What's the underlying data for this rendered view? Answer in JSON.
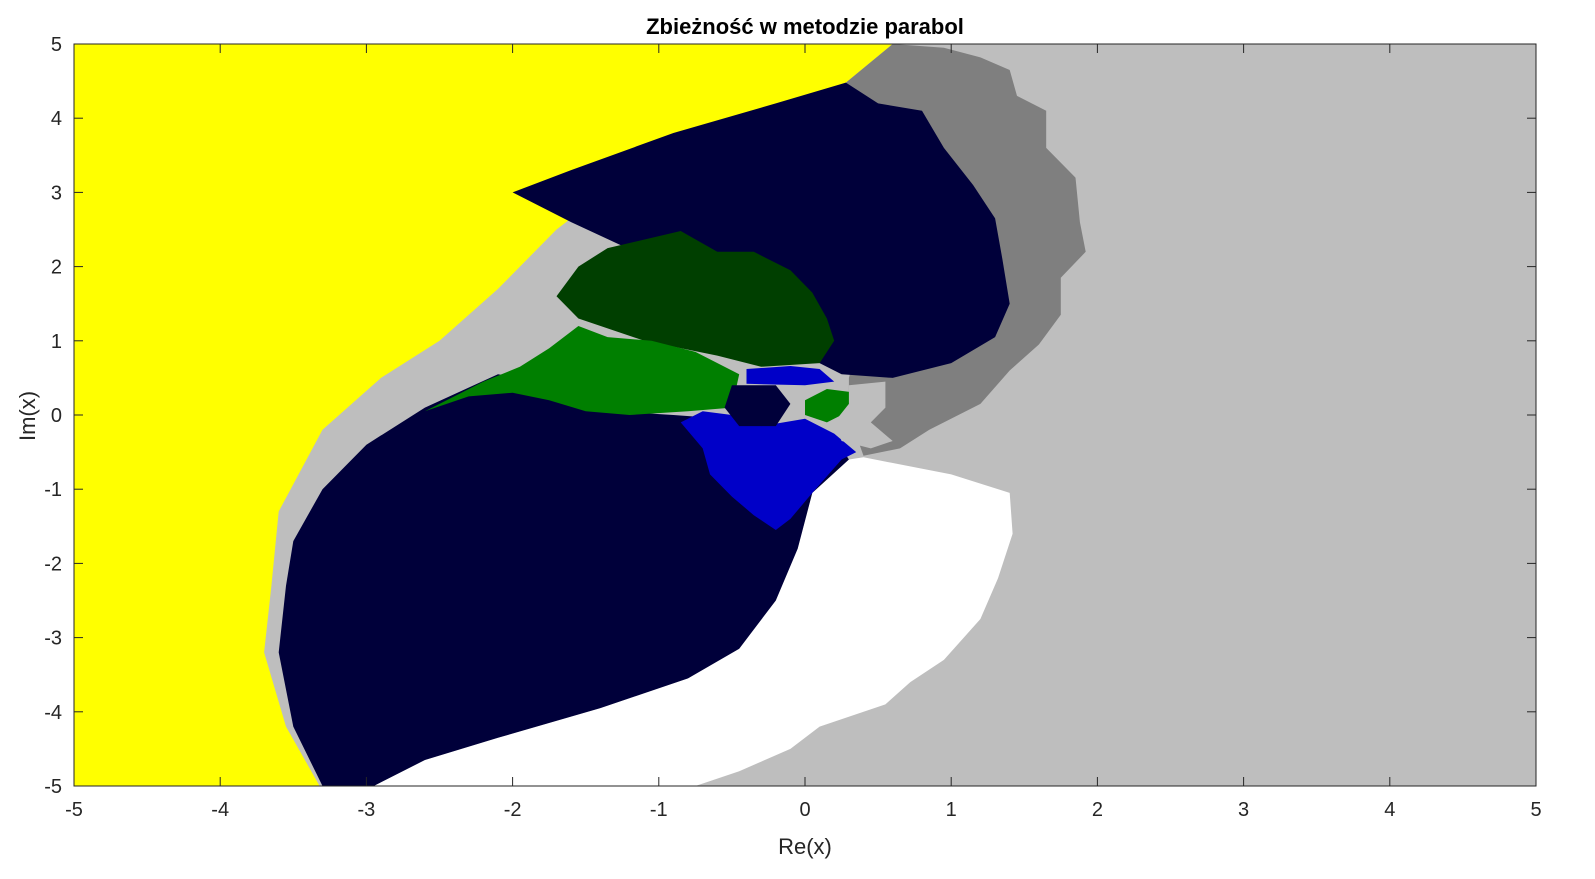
{
  "chart_data": {
    "type": "heatmap",
    "title": "Zbieżność w metodzie parabol",
    "xlabel": "Re(x)",
    "ylabel": "Im(x)",
    "xlim": [
      -5,
      5
    ],
    "ylim": [
      -5,
      5
    ],
    "xticks": [
      "-5",
      "-4",
      "-3",
      "-2",
      "-1",
      "0",
      "1",
      "2",
      "3",
      "4",
      "5"
    ],
    "yticks": [
      "5",
      "4",
      "3",
      "2",
      "1",
      "0",
      "-1",
      "-2",
      "-3",
      "-4",
      "-5"
    ],
    "grid": false,
    "legend": "none",
    "colors": {
      "background": "#bebebe",
      "yellow": "#ffff00",
      "navy": "#00003a",
      "dark_green": "#003f00",
      "green": "#007f00",
      "blue": "#0000c8",
      "gray": "#7f7f7f",
      "white": "#ffffff",
      "light_gray": "#bebebe"
    },
    "regions": [
      {
        "name": "basin-yellow",
        "color": "#ffff00",
        "polygon": [
          [
            -5,
            5
          ],
          [
            0.6,
            5
          ],
          [
            0.28,
            4.48
          ],
          [
            0.1,
            4.36
          ],
          [
            -0.7,
            3.8
          ],
          [
            -1.3,
            3.1
          ],
          [
            -1.7,
            2.5
          ],
          [
            -2.1,
            1.7
          ],
          [
            -2.5,
            1.0
          ],
          [
            -2.9,
            0.5
          ],
          [
            -3.3,
            -0.2
          ],
          [
            -3.6,
            -1.3
          ],
          [
            -3.65,
            -2.3
          ],
          [
            -3.7,
            -3.2
          ],
          [
            -3.55,
            -4.2
          ],
          [
            -3.32,
            -5
          ],
          [
            -5,
            -5
          ]
        ]
      },
      {
        "name": "basin-gray",
        "color": "#7f7f7f",
        "polygon": [
          [
            0.6,
            5
          ],
          [
            0.95,
            4.95
          ],
          [
            1.2,
            4.82
          ],
          [
            1.4,
            4.65
          ],
          [
            1.45,
            4.3
          ],
          [
            1.65,
            4.1
          ],
          [
            1.65,
            3.6
          ],
          [
            1.85,
            3.2
          ],
          [
            1.88,
            2.6
          ],
          [
            1.92,
            2.2
          ],
          [
            1.75,
            1.85
          ],
          [
            1.75,
            1.35
          ],
          [
            1.6,
            0.95
          ],
          [
            1.4,
            0.6
          ],
          [
            1.2,
            0.15
          ],
          [
            0.85,
            -0.2
          ],
          [
            0.65,
            -0.45
          ],
          [
            0.4,
            -0.55
          ],
          [
            0.3,
            0
          ],
          [
            0.3,
            0.5
          ],
          [
            0.4,
            1.2
          ],
          [
            0.6,
            2.2
          ],
          [
            0.6,
            3.2
          ],
          [
            0.4,
            4.2
          ],
          [
            0.28,
            4.48
          ]
        ]
      },
      {
        "name": "basin-white",
        "color": "#ffffff",
        "polygon": [
          [
            0.4,
            -0.57
          ],
          [
            1.0,
            -0.8
          ],
          [
            1.4,
            -1.05
          ],
          [
            1.42,
            -1.6
          ],
          [
            1.32,
            -2.2
          ],
          [
            1.2,
            -2.75
          ],
          [
            0.95,
            -3.3
          ],
          [
            0.72,
            -3.6
          ],
          [
            0.55,
            -3.9
          ],
          [
            0.1,
            -4.2
          ],
          [
            -0.1,
            -4.5
          ],
          [
            -0.45,
            -4.8
          ],
          [
            -0.75,
            -5
          ],
          [
            -2.95,
            -5
          ],
          [
            -2.6,
            -4.65
          ],
          [
            -2.1,
            -4.35
          ],
          [
            -1.4,
            -3.95
          ],
          [
            -0.8,
            -3.55
          ],
          [
            -0.45,
            -3.15
          ],
          [
            -0.2,
            -2.5
          ],
          [
            -0.05,
            -1.8
          ],
          [
            0.05,
            -1.05
          ],
          [
            0.3,
            -0.6
          ]
        ]
      },
      {
        "name": "basin-navy-upper",
        "color": "#00003a",
        "polygon": [
          [
            0.28,
            4.48
          ],
          [
            0.5,
            4.2
          ],
          [
            0.8,
            4.1
          ],
          [
            0.95,
            3.6
          ],
          [
            1.15,
            3.1
          ],
          [
            1.3,
            2.65
          ],
          [
            1.35,
            2.1
          ],
          [
            1.4,
            1.5
          ],
          [
            1.3,
            1.05
          ],
          [
            1.0,
            0.7
          ],
          [
            0.6,
            0.5
          ],
          [
            0.25,
            0.55
          ],
          [
            0.1,
            0.7
          ],
          [
            -0.2,
            1.0
          ],
          [
            -1.0,
            2.05
          ],
          [
            -1.6,
            2.6
          ],
          [
            -2.0,
            3.0
          ],
          [
            -1.6,
            3.3
          ],
          [
            -0.9,
            3.8
          ],
          [
            -0.2,
            4.2
          ]
        ]
      },
      {
        "name": "basin-navy-lower",
        "color": "#00003a",
        "polygon": [
          [
            -2.1,
            0.55
          ],
          [
            -2.6,
            0.1
          ],
          [
            -3.0,
            -0.4
          ],
          [
            -3.3,
            -1.0
          ],
          [
            -3.5,
            -1.7
          ],
          [
            -3.55,
            -2.3
          ],
          [
            -3.6,
            -3.2
          ],
          [
            -3.5,
            -4.2
          ],
          [
            -3.3,
            -5
          ],
          [
            -2.95,
            -5
          ],
          [
            -2.6,
            -4.65
          ],
          [
            -2.1,
            -4.35
          ],
          [
            -1.4,
            -3.95
          ],
          [
            -0.8,
            -3.55
          ],
          [
            -0.45,
            -3.15
          ],
          [
            -0.2,
            -2.5
          ],
          [
            -0.05,
            -1.8
          ],
          [
            0.05,
            -1.05
          ],
          [
            0.3,
            -0.6
          ],
          [
            0.2,
            -0.3
          ],
          [
            -0.2,
            -0.15
          ],
          [
            -0.55,
            -0.05
          ],
          [
            -0.9,
            0.0
          ],
          [
            -1.3,
            0.05
          ],
          [
            -1.7,
            0.4
          ]
        ]
      },
      {
        "name": "basin-dark-green",
        "color": "#003f00",
        "polygon": [
          [
            -1.55,
            1.3
          ],
          [
            -1.7,
            1.6
          ],
          [
            -1.55,
            2.0
          ],
          [
            -1.35,
            2.25
          ],
          [
            -0.85,
            2.48
          ],
          [
            -0.6,
            2.2
          ],
          [
            -0.35,
            2.2
          ],
          [
            -0.1,
            1.95
          ],
          [
            0.05,
            1.65
          ],
          [
            0.15,
            1.3
          ],
          [
            0.2,
            1.0
          ],
          [
            0.1,
            0.7
          ],
          [
            -0.3,
            0.65
          ],
          [
            -0.6,
            0.8
          ],
          [
            -1.1,
            1.0
          ]
        ]
      },
      {
        "name": "basin-green",
        "color": "#007f00",
        "polygon": [
          [
            -2.6,
            0.05
          ],
          [
            -2.2,
            0.45
          ],
          [
            -1.95,
            0.65
          ],
          [
            -1.75,
            0.9
          ],
          [
            -1.55,
            1.2
          ],
          [
            -1.35,
            1.05
          ],
          [
            -1.05,
            1.0
          ],
          [
            -0.75,
            0.85
          ],
          [
            -0.45,
            0.55
          ],
          [
            -0.5,
            0.1
          ],
          [
            -0.8,
            0.05
          ],
          [
            -1.2,
            0.0
          ],
          [
            -1.5,
            0.05
          ],
          [
            -1.75,
            0.2
          ],
          [
            -2.0,
            0.3
          ],
          [
            -2.3,
            0.25
          ]
        ]
      },
      {
        "name": "basin-blue",
        "color": "#0000c8",
        "polygon": [
          [
            -0.85,
            -0.1
          ],
          [
            -0.7,
            -0.45
          ],
          [
            -0.65,
            -0.8
          ],
          [
            -0.5,
            -1.1
          ],
          [
            -0.35,
            -1.35
          ],
          [
            -0.2,
            -1.55
          ],
          [
            -0.1,
            -1.4
          ],
          [
            0.05,
            -1.05
          ],
          [
            0.25,
            -0.6
          ],
          [
            0.35,
            -0.5
          ],
          [
            0.2,
            -0.25
          ],
          [
            0.0,
            -0.05
          ],
          [
            -0.3,
            -0.15
          ],
          [
            -0.5,
            0.0
          ],
          [
            -0.7,
            0.05
          ]
        ]
      },
      {
        "name": "basin-blue-upper",
        "color": "#0000c8",
        "polygon": [
          [
            -0.4,
            0.62
          ],
          [
            -0.1,
            0.66
          ],
          [
            0.1,
            0.62
          ],
          [
            0.2,
            0.45
          ],
          [
            0.0,
            0.4
          ],
          [
            -0.4,
            0.42
          ]
        ]
      },
      {
        "name": "basin-green-center",
        "color": "#007f00",
        "polygon": [
          [
            0.0,
            0.2
          ],
          [
            0.15,
            0.35
          ],
          [
            0.35,
            0.3
          ],
          [
            0.3,
            0.05
          ],
          [
            0.15,
            -0.1
          ],
          [
            0.0,
            0.0
          ]
        ]
      },
      {
        "name": "basin-light-gray-center",
        "color": "#bebebe",
        "polygon": [
          [
            0.3,
            0.4
          ],
          [
            0.55,
            0.45
          ],
          [
            0.55,
            0.1
          ],
          [
            0.45,
            -0.1
          ],
          [
            0.6,
            -0.35
          ],
          [
            0.45,
            -0.45
          ],
          [
            0.25,
            -0.35
          ],
          [
            0.2,
            -0.1
          ],
          [
            0.3,
            0.15
          ]
        ]
      },
      {
        "name": "basin-navy-center",
        "color": "#00003a",
        "polygon": [
          [
            -0.5,
            0.4
          ],
          [
            -0.2,
            0.4
          ],
          [
            -0.1,
            0.15
          ],
          [
            -0.2,
            -0.15
          ],
          [
            -0.45,
            -0.15
          ],
          [
            -0.55,
            0.1
          ]
        ]
      }
    ]
  }
}
